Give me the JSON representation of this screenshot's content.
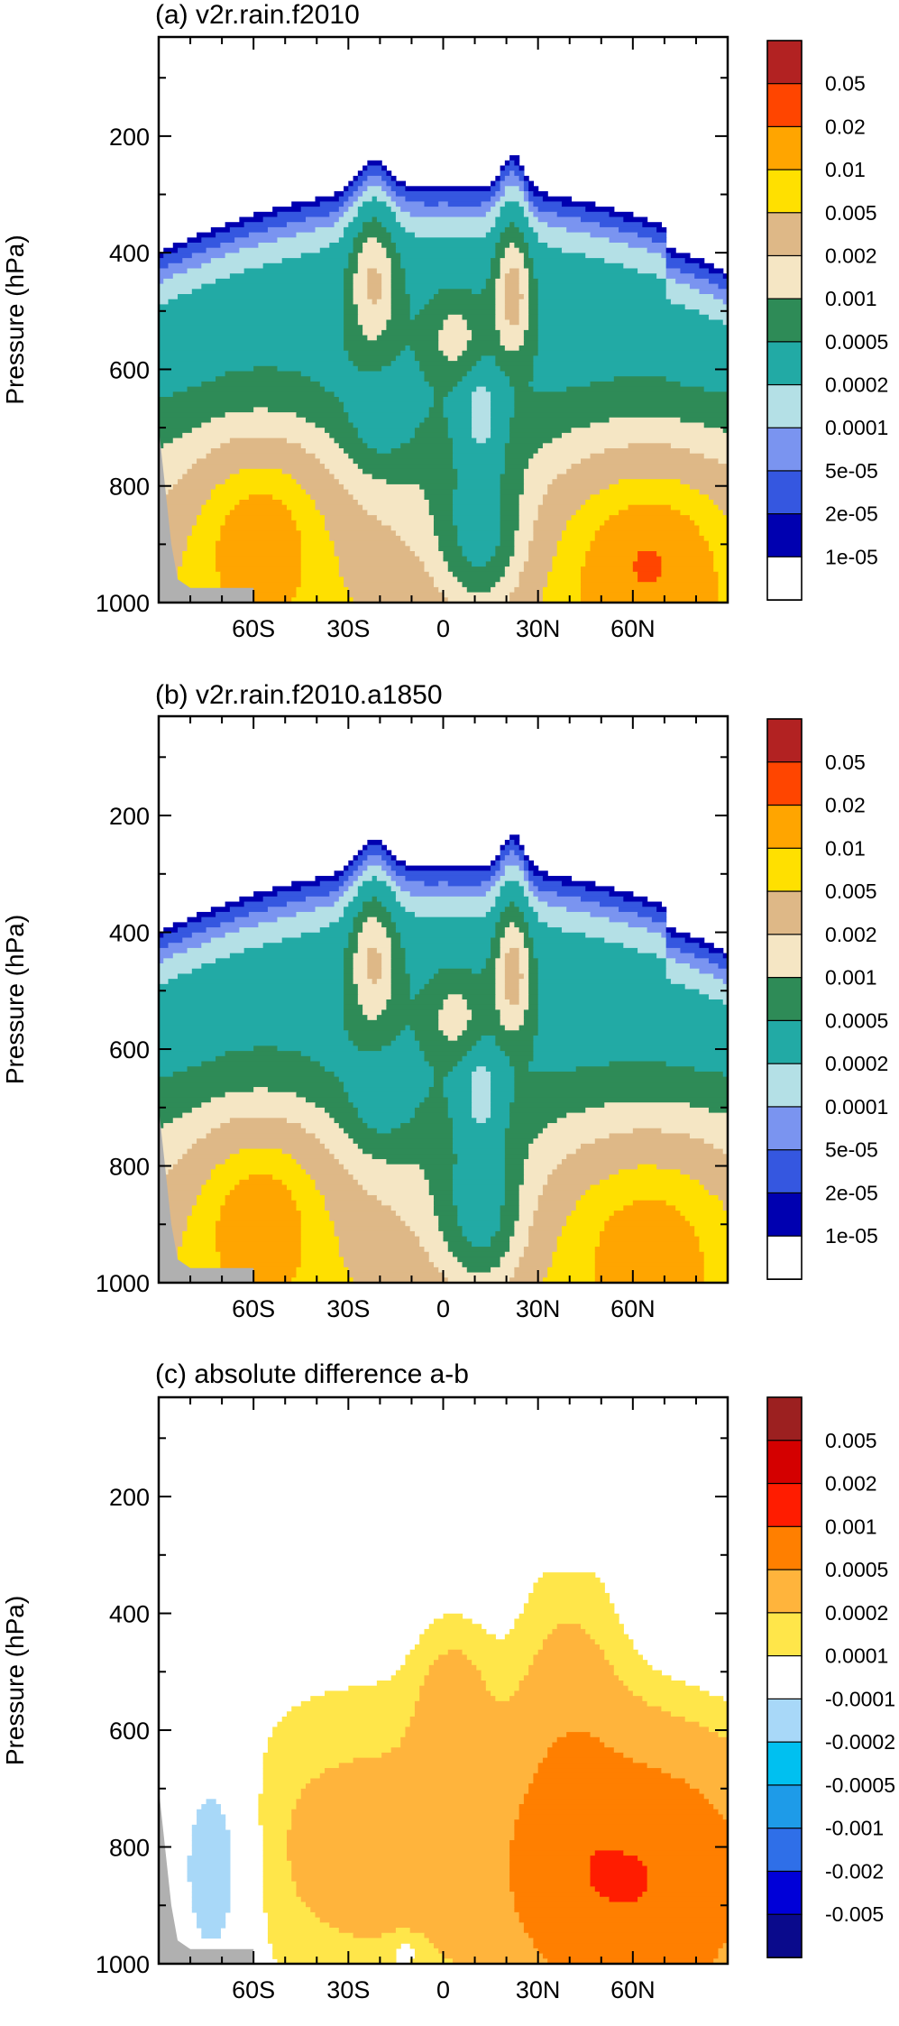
{
  "colors": {
    "land_mask": "#b0b0b0",
    "frame": "#000000",
    "palette_a": [
      "#ffffff",
      "#0000b0",
      "#3557e0",
      "#7a94f0",
      "#b4e0e6",
      "#22aaa5",
      "#2e8b57",
      "#f5e6c4",
      "#deb887",
      "#ffe000",
      "#ffa500",
      "#ff4500",
      "#b22222"
    ],
    "palette_c": [
      "#0a0a8c",
      "#0000d8",
      "#2f6fe8",
      "#1e9be8",
      "#00c0f0",
      "#a8d8f8",
      "#ffffff",
      "#ffe64a",
      "#ffb43c",
      "#ff7f00",
      "#ff1c00",
      "#d40000",
      "#9c2020"
    ]
  },
  "chart_data": [
    {
      "type": "heatmap",
      "title": "(a) v2r.rain.f2010",
      "ylabel": "Pressure (hPa)",
      "xlabel": "",
      "x_ticks": [
        -60,
        -30,
        0,
        30,
        60
      ],
      "x_tick_labels": [
        "60S",
        "30S",
        "0",
        "30N",
        "60N"
      ],
      "xlim": [
        -90,
        90
      ],
      "y_ticks": [
        200,
        400,
        600,
        800,
        1000
      ],
      "y_tick_labels": [
        "200",
        "400",
        "600",
        "800",
        "1000"
      ],
      "ylim": [
        1000,
        30
      ],
      "levels": [
        1e-05,
        2e-05,
        5e-05,
        0.0001,
        0.0002,
        0.0005,
        0.001,
        0.002,
        0.005,
        0.01,
        0.02,
        0.05
      ],
      "colorbar_labels": [
        "0.05",
        "0.02",
        "0.01",
        "0.005",
        "0.002",
        "0.001",
        "0.0005",
        "0.0002",
        "0.0001",
        "5e-05",
        "2e-05",
        "1e-05"
      ],
      "palette_key": "palette_a",
      "field_description": "maximum values ~0.03 near 900 hPa at 60S and 60N; minimum ~1e-05 near 300 hPa cloud-top edge"
    },
    {
      "type": "heatmap",
      "title": "(b) v2r.rain.f2010.a1850",
      "ylabel": "Pressure (hPa)",
      "xlabel": "",
      "x_ticks": [
        -60,
        -30,
        0,
        30,
        60
      ],
      "x_tick_labels": [
        "60S",
        "30S",
        "0",
        "30N",
        "60N"
      ],
      "xlim": [
        -90,
        90
      ],
      "y_ticks": [
        200,
        400,
        600,
        800,
        1000
      ],
      "y_tick_labels": [
        "200",
        "400",
        "600",
        "800",
        "1000"
      ],
      "ylim": [
        1000,
        30
      ],
      "levels": [
        1e-05,
        2e-05,
        5e-05,
        0.0001,
        0.0002,
        0.0005,
        0.001,
        0.002,
        0.005,
        0.01,
        0.02,
        0.05
      ],
      "colorbar_labels": [
        "0.05",
        "0.02",
        "0.01",
        "0.005",
        "0.002",
        "0.001",
        "0.0005",
        "0.0002",
        "0.0001",
        "5e-05",
        "2e-05",
        "1e-05"
      ],
      "palette_key": "palette_a"
    },
    {
      "type": "heatmap",
      "title": "(c) absolute difference a-b",
      "ylabel": "Pressure (hPa)",
      "xlabel": "",
      "x_ticks": [
        -60,
        -30,
        0,
        30,
        60
      ],
      "x_tick_labels": [
        "60S",
        "30S",
        "0",
        "30N",
        "60N"
      ],
      "xlim": [
        -90,
        90
      ],
      "y_ticks": [
        200,
        400,
        600,
        800,
        1000
      ],
      "y_tick_labels": [
        "200",
        "400",
        "600",
        "800",
        "1000"
      ],
      "ylim": [
        1000,
        30
      ],
      "levels": [
        -0.005,
        -0.002,
        -0.001,
        -0.0005,
        -0.0002,
        -0.0001,
        0.0001,
        0.0002,
        0.0005,
        0.001,
        0.002,
        0.005
      ],
      "colorbar_labels": [
        "0.005",
        "0.002",
        "0.001",
        "0.0005",
        "0.0002",
        "0.0001",
        "-0.0001",
        "-0.0002",
        "-0.0005",
        "-0.001",
        "-0.002",
        "-0.005"
      ],
      "palette_key": "palette_c"
    }
  ]
}
